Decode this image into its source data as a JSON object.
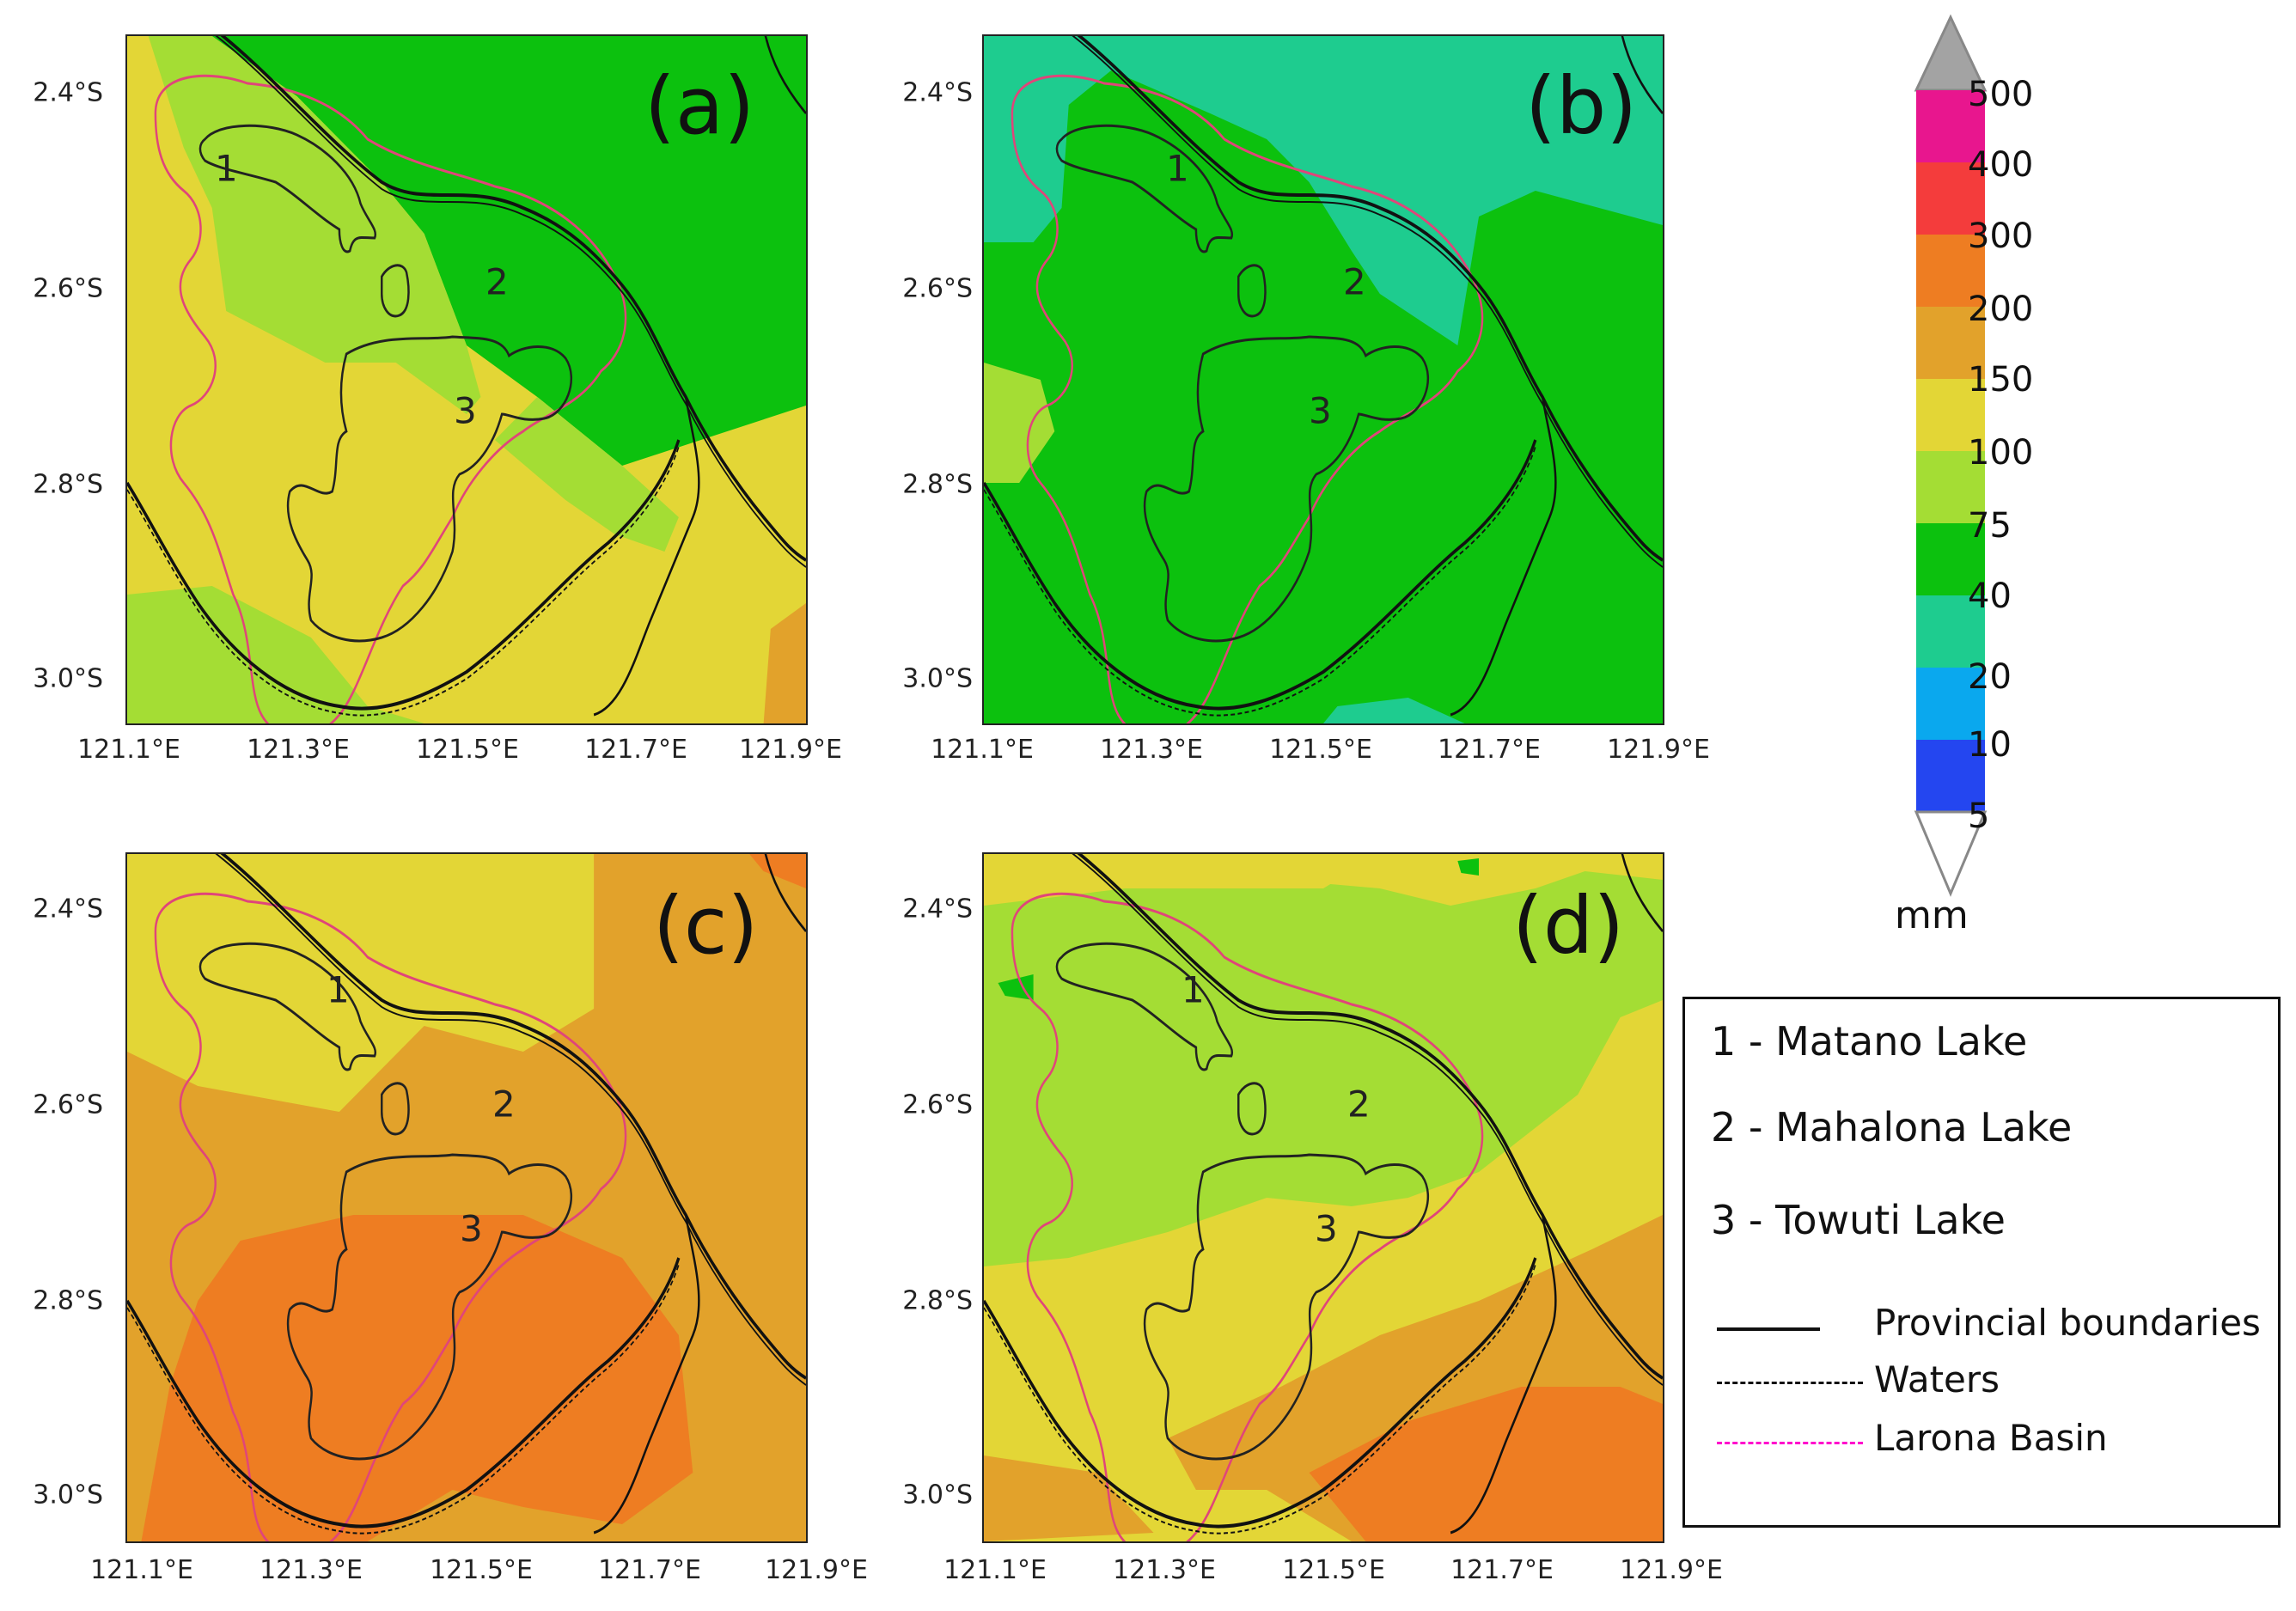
{
  "panels": [
    {
      "label": "(a)",
      "theme": "a"
    },
    {
      "label": "(b)",
      "theme": "b"
    },
    {
      "label": "(c)",
      "theme": "c"
    },
    {
      "label": "(d)",
      "theme": "d"
    }
  ],
  "lake_numbers": [
    "1",
    "2",
    "3"
  ],
  "lat_ticks": [
    "2.4°S",
    "2.6°S",
    "2.8°S",
    "3.0°S"
  ],
  "lon_ticks": [
    "121.1°E",
    "121.3°E",
    "121.5°E",
    "121.7°E",
    "121.9°E"
  ],
  "colorbar": {
    "unit": "mm",
    "levels": [
      "500",
      "400",
      "300",
      "200",
      "150",
      "100",
      "75",
      "40",
      "20",
      "10",
      "5"
    ],
    "colors": [
      "#e8168e",
      "#f43c3c",
      "#ee7d22",
      "#e2a22b",
      "#e3d636",
      "#a4dd34",
      "#0cc10e",
      "#1ecc8f",
      "#0aa8ee",
      "#2446f0"
    ]
  },
  "legend": {
    "lakes": [
      "1 - Matano Lake",
      "2 - Mahalona Lake",
      "3 - Towuti Lake"
    ],
    "lines": [
      "Provincial boundaries",
      "Waters",
      "Larona Basin"
    ],
    "line_colors": {
      "provincial": "#111111",
      "waters": "#111111",
      "basin": "#ff00cc"
    }
  }
}
